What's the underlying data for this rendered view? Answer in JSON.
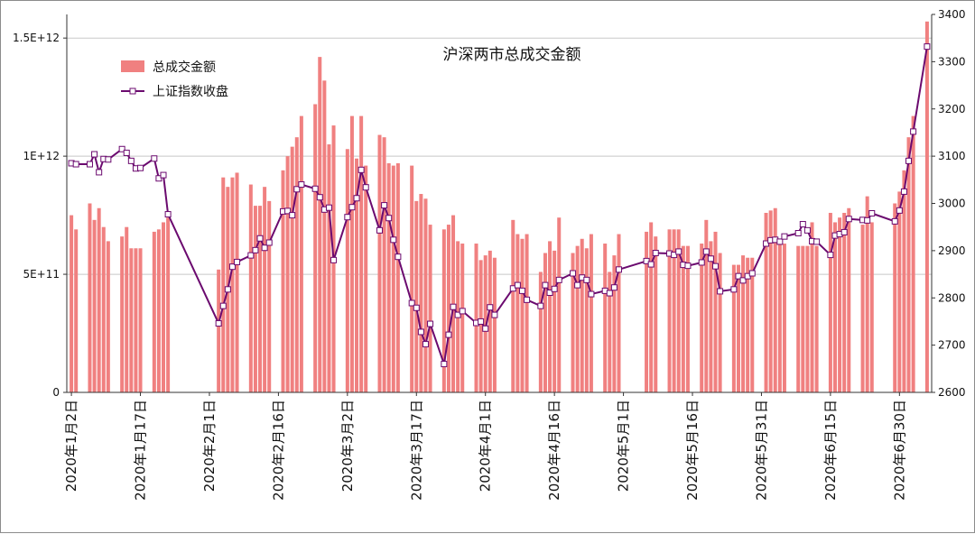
{
  "chart_data": {
    "type": "bar+line",
    "title": "沪深两市总成交金额",
    "legend_position": "top-left",
    "y_left": {
      "ylim": [
        0,
        1600000000000
      ],
      "ticks": [
        0,
        500000000000,
        1000000000000,
        1500000000000
      ],
      "tick_labels": [
        "0",
        "5E+11",
        "1E+12",
        "1.5E+12"
      ]
    },
    "y_right": {
      "ylim": [
        2600,
        3400
      ],
      "ticks": [
        2600,
        2700,
        2800,
        2900,
        3000,
        3100,
        3200,
        3300,
        3400
      ],
      "tick_labels": [
        "2600",
        "2700",
        "2800",
        "2900",
        "3000",
        "3100",
        "3200",
        "3300",
        "3400"
      ]
    },
    "grid": true,
    "x": [
      "2020-01-02",
      "2020-01-03",
      "2020-01-06",
      "2020-01-07",
      "2020-01-08",
      "2020-01-09",
      "2020-01-10",
      "2020-01-13",
      "2020-01-14",
      "2020-01-15",
      "2020-01-16",
      "2020-01-17",
      "2020-01-20",
      "2020-01-21",
      "2020-01-22",
      "2020-01-23",
      "2020-02-03",
      "2020-02-04",
      "2020-02-05",
      "2020-02-06",
      "2020-02-07",
      "2020-02-10",
      "2020-02-11",
      "2020-02-12",
      "2020-02-13",
      "2020-02-14",
      "2020-02-17",
      "2020-02-18",
      "2020-02-19",
      "2020-02-20",
      "2020-02-21",
      "2020-02-24",
      "2020-02-25",
      "2020-02-26",
      "2020-02-27",
      "2020-02-28",
      "2020-03-02",
      "2020-03-03",
      "2020-03-04",
      "2020-03-05",
      "2020-03-06",
      "2020-03-09",
      "2020-03-10",
      "2020-03-11",
      "2020-03-12",
      "2020-03-13",
      "2020-03-16",
      "2020-03-17",
      "2020-03-18",
      "2020-03-19",
      "2020-03-20",
      "2020-03-23",
      "2020-03-24",
      "2020-03-25",
      "2020-03-26",
      "2020-03-27",
      "2020-03-30",
      "2020-03-31",
      "2020-04-01",
      "2020-04-02",
      "2020-04-03",
      "2020-04-07",
      "2020-04-08",
      "2020-04-09",
      "2020-04-10",
      "2020-04-13",
      "2020-04-14",
      "2020-04-15",
      "2020-04-16",
      "2020-04-17",
      "2020-04-20",
      "2020-04-21",
      "2020-04-22",
      "2020-04-23",
      "2020-04-24",
      "2020-04-27",
      "2020-04-28",
      "2020-04-29",
      "2020-04-30",
      "2020-05-06",
      "2020-05-07",
      "2020-05-08",
      "2020-05-11",
      "2020-05-12",
      "2020-05-13",
      "2020-05-14",
      "2020-05-15",
      "2020-05-18",
      "2020-05-19",
      "2020-05-20",
      "2020-05-21",
      "2020-05-22",
      "2020-05-25",
      "2020-05-26",
      "2020-05-27",
      "2020-05-28",
      "2020-05-29",
      "2020-06-01",
      "2020-06-02",
      "2020-06-03",
      "2020-06-04",
      "2020-06-05",
      "2020-06-08",
      "2020-06-09",
      "2020-06-10",
      "2020-06-11",
      "2020-06-12",
      "2020-06-15",
      "2020-06-16",
      "2020-06-17",
      "2020-06-18",
      "2020-06-19",
      "2020-06-22",
      "2020-06-23",
      "2020-06-24",
      "2020-06-29",
      "2020-06-30",
      "2020-07-01",
      "2020-07-02",
      "2020-07-03",
      "2020-07-06"
    ],
    "x_tick_dates": [
      "2020-01-02",
      "2020-01-17",
      "2020-02-01",
      "2020-02-16",
      "2020-03-02",
      "2020-03-17",
      "2020-04-01",
      "2020-04-16",
      "2020-05-01",
      "2020-05-16",
      "2020-05-31",
      "2020-06-15",
      "2020-06-30"
    ],
    "x_tick_labels": [
      "2020年1月2日",
      "2020年1月17日",
      "2020年2月1日",
      "2020年2月16日",
      "2020年3月2日",
      "2020年3月17日",
      "2020年4月1日",
      "2020年4月16日",
      "2020年5月1日",
      "2020年5月16日",
      "2020年5月31日",
      "2020年6月15日",
      "2020年6月30日"
    ],
    "series": [
      {
        "name": "总成交金额",
        "type": "bar",
        "axis": "left",
        "color": "#f08080",
        "values": [
          750000000000,
          690000000000,
          800000000000,
          730000000000,
          780000000000,
          700000000000,
          640000000000,
          660000000000,
          700000000000,
          610000000000,
          610000000000,
          610000000000,
          680000000000,
          690000000000,
          720000000000,
          740000000000,
          520000000000,
          910000000000,
          870000000000,
          910000000000,
          930000000000,
          880000000000,
          790000000000,
          790000000000,
          870000000000,
          810000000000,
          940000000000,
          1000000000000,
          1040000000000,
          1080000000000,
          1170000000000,
          1220000000000,
          1420000000000,
          1320000000000,
          1050000000000,
          1130000000000,
          1030000000000,
          1170000000000,
          990000000000,
          1170000000000,
          960000000000,
          1090000000000,
          1080000000000,
          970000000000,
          960000000000,
          970000000000,
          960000000000,
          810000000000,
          840000000000,
          820000000000,
          710000000000,
          690000000000,
          710000000000,
          750000000000,
          640000000000,
          630000000000,
          630000000000,
          560000000000,
          580000000000,
          600000000000,
          570000000000,
          730000000000,
          670000000000,
          650000000000,
          670000000000,
          510000000000,
          590000000000,
          640000000000,
          600000000000,
          740000000000,
          590000000000,
          620000000000,
          650000000000,
          610000000000,
          670000000000,
          630000000000,
          510000000000,
          580000000000,
          670000000000,
          680000000000,
          720000000000,
          660000000000,
          690000000000,
          690000000000,
          690000000000,
          620000000000,
          620000000000,
          630000000000,
          730000000000,
          640000000000,
          680000000000,
          590000000000,
          540000000000,
          540000000000,
          580000000000,
          570000000000,
          570000000000,
          760000000000,
          770000000000,
          780000000000,
          640000000000,
          630000000000,
          620000000000,
          620000000000,
          620000000000,
          720000000000,
          620000000000,
          760000000000,
          720000000000,
          740000000000,
          760000000000,
          780000000000,
          710000000000,
          830000000000,
          720000000000,
          800000000000,
          850000000000,
          940000000000,
          1080000000000,
          1170000000000,
          1570000000000
        ]
      },
      {
        "name": "上证指数收盘",
        "type": "line",
        "axis": "right",
        "color": "#6b0a6f",
        "values": [
          3085,
          3083,
          3083,
          3104,
          3066,
          3094,
          3093,
          3115,
          3107,
          3090,
          3074,
          3075,
          3095,
          3053,
          3060,
          2977,
          2746,
          2783,
          2818,
          2866,
          2876,
          2890,
          2901,
          2926,
          2906,
          2917,
          2983,
          2984,
          2975,
          3030,
          3040,
          3031,
          3013,
          2987,
          2991,
          2880,
          2971,
          2992,
          3011,
          3071,
          3034,
          2943,
          2996,
          2969,
          2923,
          2887,
          2789,
          2779,
          2728,
          2702,
          2745,
          2660,
          2722,
          2781,
          2764,
          2772,
          2747,
          2750,
          2735,
          2780,
          2764,
          2820,
          2827,
          2815,
          2796,
          2783,
          2827,
          2811,
          2819,
          2838,
          2852,
          2827,
          2843,
          2838,
          2808,
          2815,
          2810,
          2822,
          2860,
          2878,
          2871,
          2895,
          2894,
          2891,
          2898,
          2870,
          2868,
          2875,
          2898,
          2883,
          2867,
          2814,
          2818,
          2846,
          2837,
          2846,
          2852,
          2915,
          2922,
          2923,
          2919,
          2930,
          2937,
          2956,
          2943,
          2920,
          2919,
          2891,
          2932,
          2935,
          2939,
          2967,
          2965,
          2964,
          2979,
          2962,
          2985,
          3025,
          3090,
          3152,
          3332
        ]
      }
    ]
  }
}
